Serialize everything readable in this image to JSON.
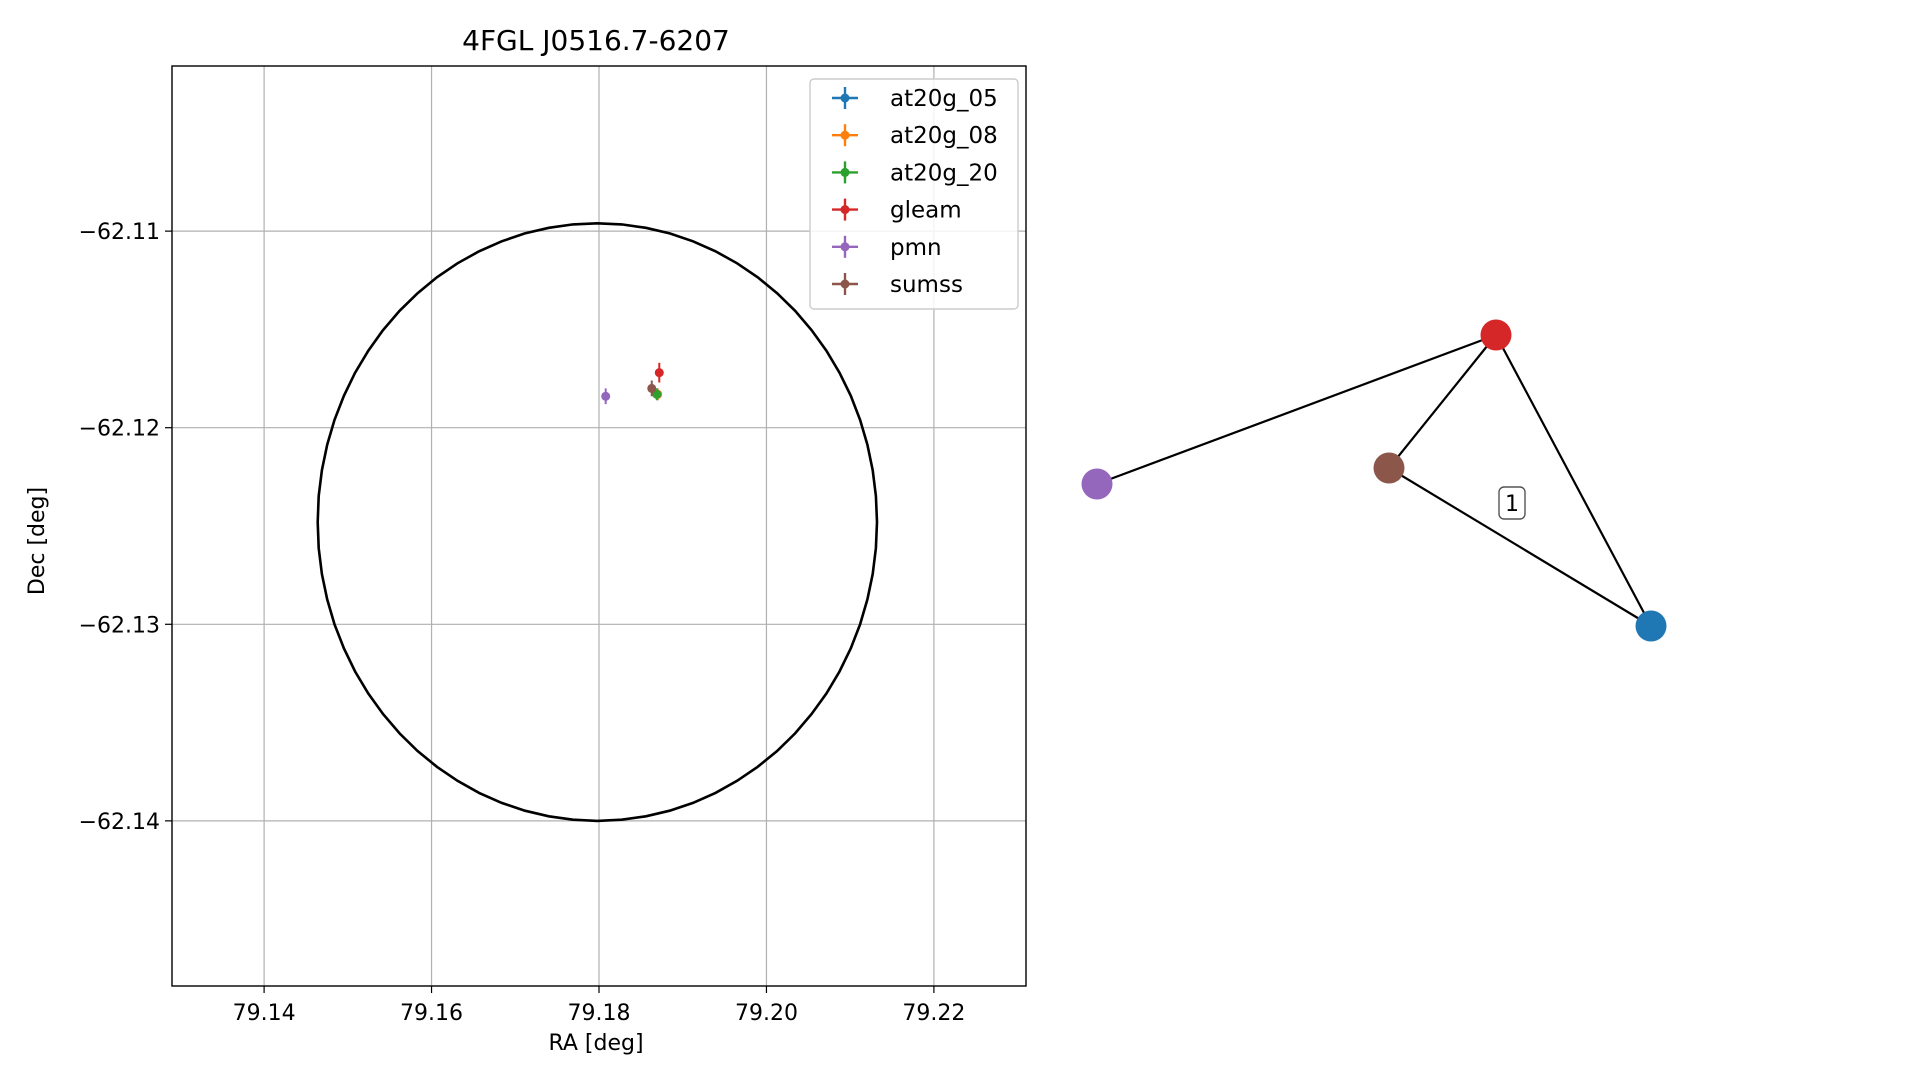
{
  "chart_data": [
    {
      "type": "scatter",
      "title": "4FGL J0516.7-6207",
      "xlabel": "RA [deg]",
      "ylabel": "Dec [deg]",
      "xlim": [
        79.129,
        79.231
      ],
      "ylim": [
        -62.1484,
        -62.1016
      ],
      "grid": true,
      "legend_position": "top-right",
      "xticks": [
        79.14,
        79.16,
        79.18,
        79.2,
        79.22
      ],
      "xtick_labels": [
        "79.14",
        "79.16",
        "79.18",
        "79.20",
        "79.22"
      ],
      "yticks": [
        -62.11,
        -62.12,
        -62.13,
        -62.14
      ],
      "ytick_labels": [
        "−62.11",
        "−62.12",
        "−62.13",
        "−62.14"
      ],
      "ellipse": {
        "center": [
          79.1798,
          -62.1248
        ],
        "ra_half_width": 0.0334,
        "dec_half_height": 0.0152,
        "color": "#000000"
      },
      "series": [
        {
          "name": "at20g_05",
          "color": "#1f77b4",
          "points": [
            {
              "x": 79.187,
              "y": -62.1183,
              "xerr": 0.0003,
              "yerr": 0.0003
            }
          ]
        },
        {
          "name": "at20g_08",
          "color": "#ff7f0e",
          "points": [
            {
              "x": 79.187,
              "y": -62.1183,
              "xerr": 0.0003,
              "yerr": 0.0003
            }
          ]
        },
        {
          "name": "at20g_20",
          "color": "#2ca02c",
          "points": [
            {
              "x": 79.1869,
              "y": -62.1183,
              "xerr": 0.0003,
              "yerr": 0.0003
            }
          ]
        },
        {
          "name": "gleam",
          "color": "#d62728",
          "points": [
            {
              "x": 79.1872,
              "y": -62.1172,
              "xerr": 0.0002,
              "yerr": 0.0005
            }
          ]
        },
        {
          "name": "pmn",
          "color": "#9467bd",
          "points": [
            {
              "x": 79.1808,
              "y": -62.1184,
              "xerr": 0.0003,
              "yerr": 0.0004
            }
          ]
        },
        {
          "name": "sumss",
          "color": "#8c564b",
          "points": [
            {
              "x": 79.1863,
              "y": -62.118,
              "xerr": 0.0003,
              "yerr": 0.0004
            }
          ]
        }
      ]
    },
    {
      "type": "network",
      "nodes": [
        {
          "id": "gleam",
          "color": "#d62728"
        },
        {
          "id": "pmn",
          "color": "#9467bd"
        },
        {
          "id": "sumss",
          "color": "#8c564b"
        },
        {
          "id": "at20g",
          "color": "#1f77b4"
        }
      ],
      "edges": [
        {
          "from": "gleam",
          "to": "pmn"
        },
        {
          "from": "gleam",
          "to": "sumss"
        },
        {
          "from": "gleam",
          "to": "at20g"
        },
        {
          "from": "sumss",
          "to": "at20g"
        }
      ],
      "edge_labels": [
        "1"
      ]
    }
  ]
}
